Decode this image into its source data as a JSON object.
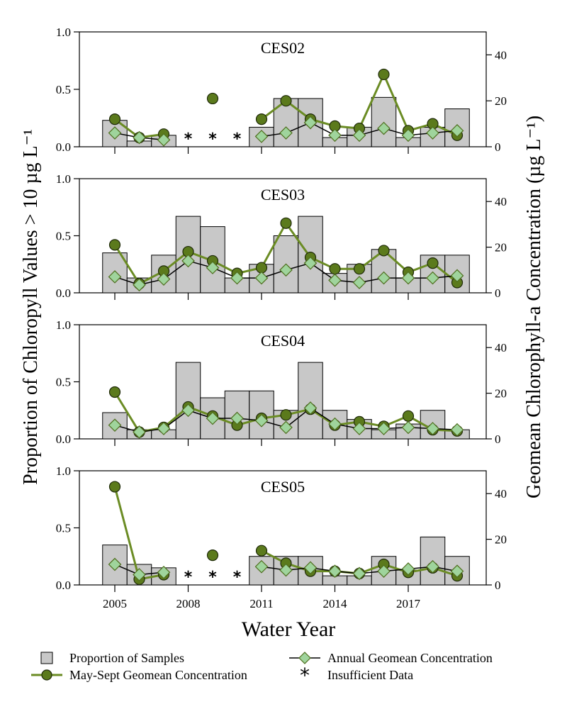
{
  "chart_data": {
    "type": "bar",
    "x": [
      2005,
      2006,
      2007,
      2008,
      2009,
      2010,
      2011,
      2012,
      2013,
      2014,
      2015,
      2016,
      2017,
      2018,
      2019
    ],
    "xticks": [
      2005,
      2008,
      2011,
      2014,
      2017
    ],
    "xlabel": "Water Year",
    "ylabel_left": "Proportion of Chloropyll Values > 10 µg L⁻¹",
    "ylabel_right": "Geomean Chlorophyll-a Concentration (µg L⁻¹)",
    "ylim_left": [
      0,
      1.0
    ],
    "ylim_right": [
      0,
      50
    ],
    "yticks_left": [
      "0.0",
      "0.5",
      "1.0"
    ],
    "yticks_right": [
      "0",
      "20",
      "40"
    ],
    "panels": [
      {
        "name": "CES02",
        "proportion": [
          0.23,
          0.05,
          0.1,
          null,
          null,
          null,
          0.17,
          0.42,
          0.42,
          0.08,
          0.17,
          0.43,
          0.08,
          0.17,
          0.33
        ],
        "may_sept_geomean": [
          12,
          4,
          5.5,
          null,
          21,
          null,
          12,
          20,
          12,
          9,
          8,
          31.5,
          7,
          10,
          5
        ],
        "annual_geomean": [
          6,
          4,
          3,
          null,
          null,
          null,
          4.5,
          6,
          10.5,
          5,
          5,
          8,
          5,
          6,
          7
        ],
        "insufficient_data": [
          2008,
          2009,
          2010
        ]
      },
      {
        "name": "CES03",
        "proportion": [
          0.35,
          0.13,
          0.33,
          0.67,
          0.58,
          0.13,
          0.25,
          0.5,
          0.67,
          0.17,
          0.25,
          0.38,
          0.13,
          0.33,
          0.33
        ],
        "may_sept_geomean": [
          21,
          4,
          9.5,
          18,
          14,
          8.5,
          11,
          30.5,
          15.5,
          10.5,
          10.5,
          18.5,
          9,
          13,
          4.5
        ],
        "annual_geomean": [
          7,
          3.5,
          6,
          14,
          11,
          6.5,
          6.5,
          10,
          13,
          5.5,
          4.5,
          6.5,
          6.5,
          6.5,
          7.5
        ],
        "insufficient_data": []
      },
      {
        "name": "CES04",
        "proportion": [
          0.23,
          0.08,
          0.08,
          0.67,
          0.36,
          0.42,
          0.42,
          0.25,
          0.67,
          0.25,
          0.17,
          0.08,
          0.13,
          0.25,
          0.08
        ],
        "may_sept_geomean": [
          20.5,
          3,
          5,
          14,
          10,
          6,
          9,
          10.5,
          13,
          6,
          7.5,
          5.5,
          10,
          4,
          3.5
        ],
        "annual_geomean": [
          6,
          3,
          4.5,
          12.5,
          9,
          9,
          8,
          5,
          13.5,
          6.5,
          4.5,
          4.5,
          5,
          4.5,
          4
        ],
        "insufficient_data": []
      },
      {
        "name": "CES05",
        "proportion": [
          0.35,
          0.18,
          0.15,
          null,
          null,
          null,
          0.25,
          0.25,
          0.25,
          0.08,
          0.08,
          0.25,
          0.13,
          0.42,
          0.25
        ],
        "may_sept_geomean": [
          43,
          2.5,
          4.5,
          null,
          13,
          null,
          15,
          9.5,
          6,
          6,
          5,
          9,
          5.5,
          7.5,
          4
        ],
        "annual_geomean": [
          9,
          4.5,
          5.5,
          null,
          null,
          null,
          8,
          6.5,
          7.5,
          6,
          5,
          6,
          7,
          8,
          6
        ],
        "insufficient_data": [
          2008,
          2009,
          2010
        ]
      }
    ],
    "legend": [
      {
        "label": "Proportion of Samples",
        "symbol": "gray-square"
      },
      {
        "label": "Annual Geomean Concentration",
        "symbol": "diamond-line"
      },
      {
        "label": "May-Sept Geomean Concentration",
        "symbol": "circle-line"
      },
      {
        "label": "Insufficient Data",
        "symbol": "asterisk"
      }
    ],
    "colors": {
      "bar_fill": "#c8c8c8",
      "may_sept": "#5b7a1c",
      "may_sept_line": "#6b8c24",
      "annual_fill": "#9fd49c",
      "annual_stroke": "#4f6e1e",
      "annual_line": "#000000"
    }
  }
}
